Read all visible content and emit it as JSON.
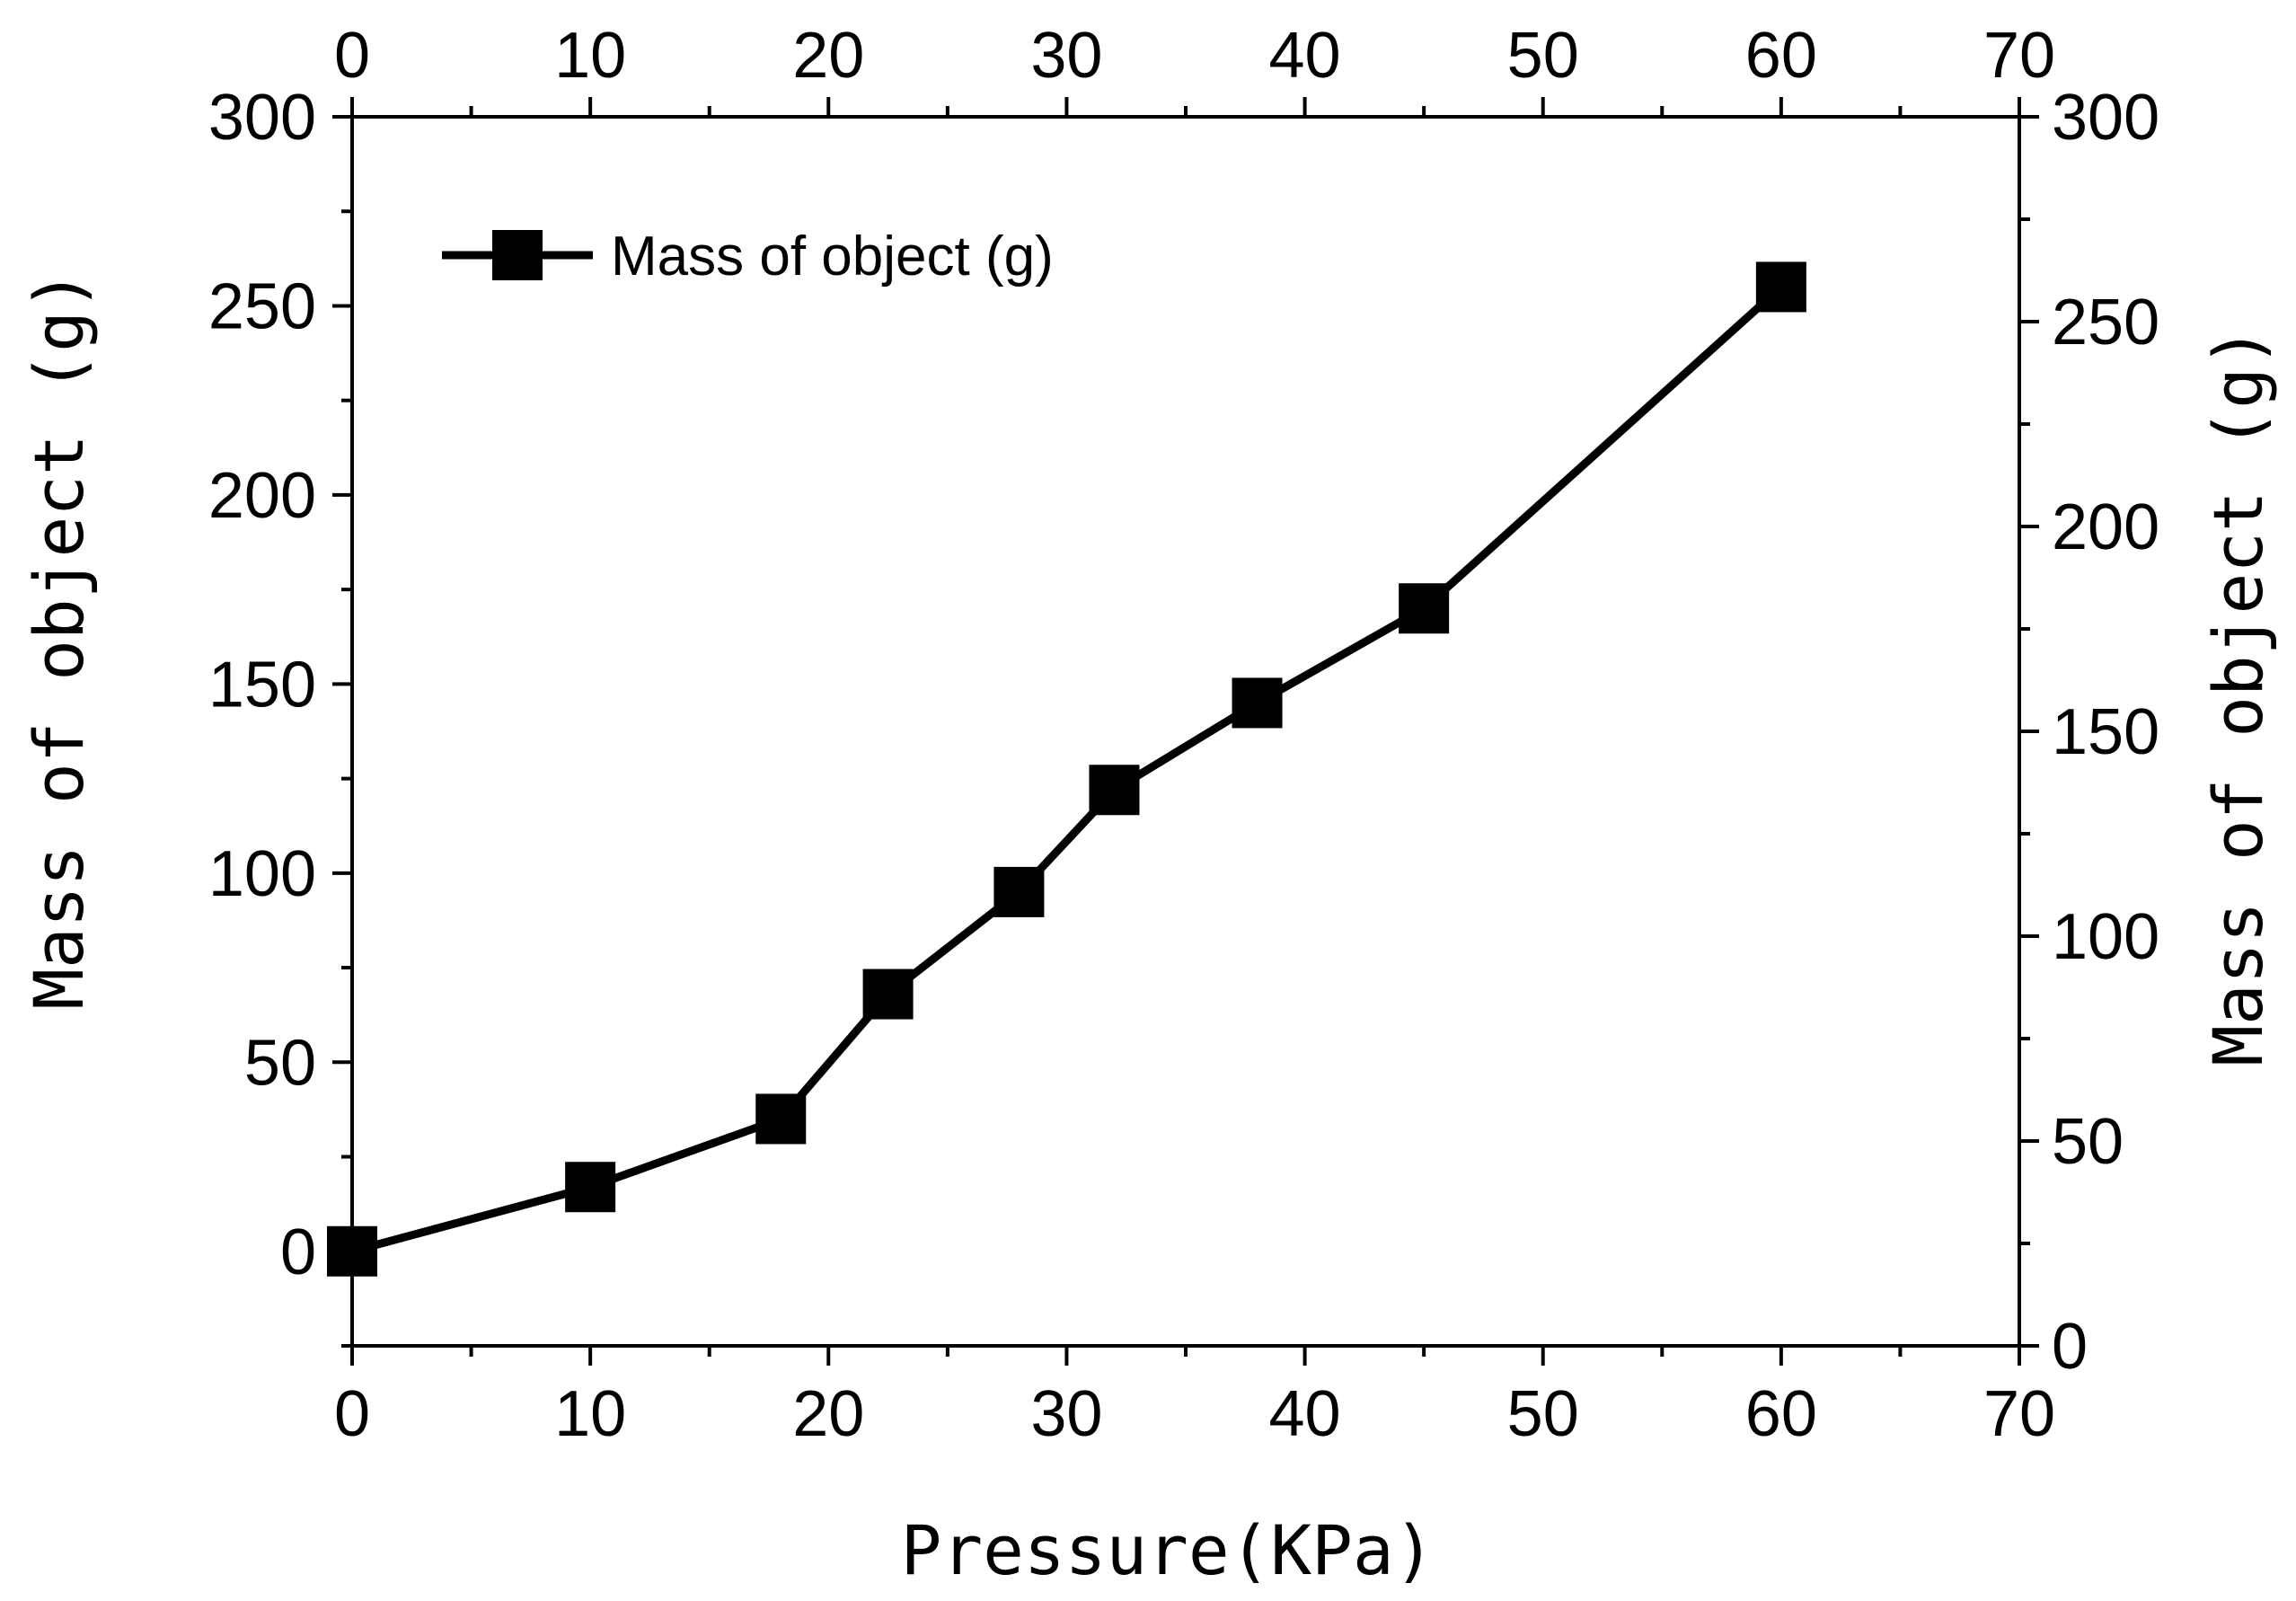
{
  "chart_data": {
    "type": "line",
    "title": "",
    "xlabel": "Pressure(KPa)",
    "ylabel": "Mass of object (g)",
    "y2label": "Mass of object (g)",
    "xlim": [
      0,
      70
    ],
    "ylim": [
      -25,
      300
    ],
    "y2lim": [
      0,
      300
    ],
    "xticks": [
      0,
      10,
      20,
      30,
      40,
      50,
      60,
      70
    ],
    "x2ticks": [
      0,
      10,
      20,
      30,
      40,
      50,
      60,
      70
    ],
    "yticks": [
      0,
      50,
      100,
      150,
      200,
      250,
      300
    ],
    "y2ticks": [
      0,
      50,
      100,
      150,
      200,
      250,
      300
    ],
    "grid": false,
    "legend_position": "top-left",
    "series": [
      {
        "name": "Mass of object (g)",
        "marker": "square",
        "color": "#000000",
        "x": [
          0,
          10,
          18,
          22.5,
          28,
          32,
          38,
          45,
          60
        ],
        "y": [
          0,
          17,
          35,
          68,
          95,
          122,
          145,
          170,
          255
        ]
      }
    ]
  }
}
